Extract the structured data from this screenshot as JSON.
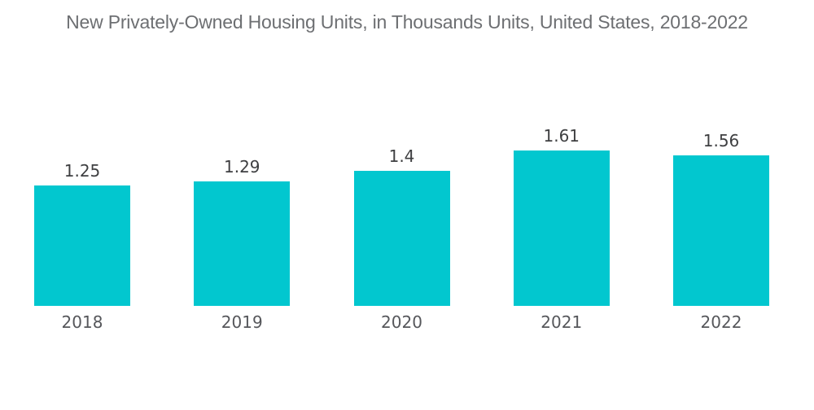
{
  "title": "New Privately-Owned Housing Units, in Thousands Units, United States, 2018-2022",
  "colors": {
    "background": "#FFFFFF",
    "bar": "#02C7CF",
    "title_text": "#6D6F72",
    "value_label_text": "#3E3F41",
    "year_label_text": "#56575B"
  },
  "chart_data": {
    "type": "bar",
    "title": "New Privately-Owned Housing Units, in Thousands Units, United States, 2018-2022",
    "categories": [
      "2018",
      "2019",
      "2020",
      "2021",
      "2022"
    ],
    "values": [
      1.25,
      1.29,
      1.4,
      1.61,
      1.56
    ],
    "value_labels": [
      "1.25",
      "1.29",
      "1.4",
      "1.61",
      "1.56"
    ],
    "xlabel": "",
    "ylabel": "",
    "ylim": [
      0,
      1.7
    ],
    "grid": false,
    "legend_position": "none",
    "bar_color": "#02C7CF",
    "data_labels_position": "above-bars",
    "axes_visible": false
  }
}
